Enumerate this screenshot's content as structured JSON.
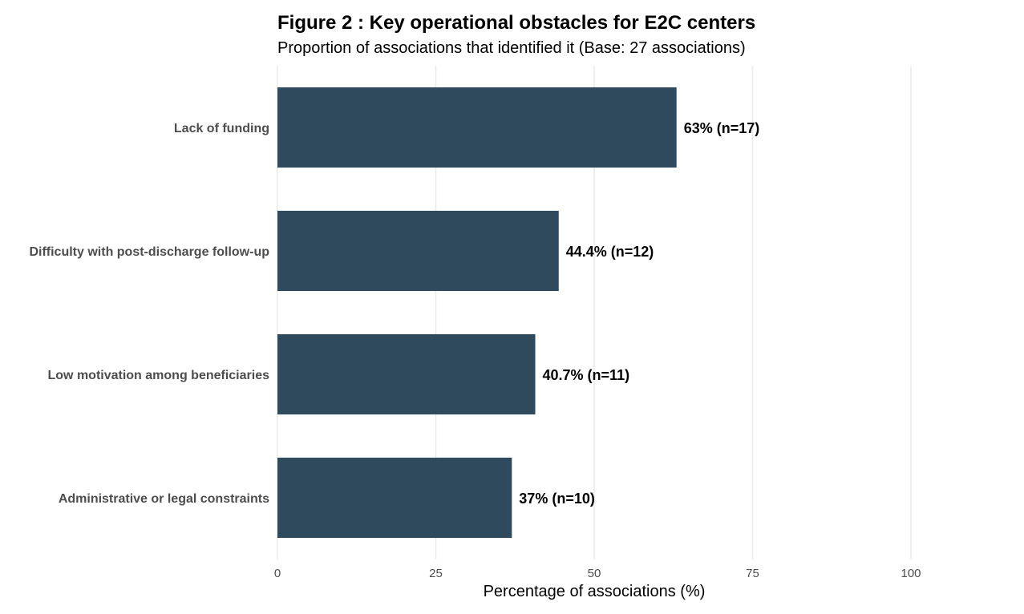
{
  "chart_data": {
    "type": "bar",
    "orientation": "horizontal",
    "title": "Figure 2 : Key operational obstacles for E2C centers",
    "subtitle": "Proportion of associations that identified it (Base: 27 associations)",
    "xlabel": "Percentage of associations (%)",
    "ylabel": "",
    "xlim": [
      0,
      100
    ],
    "x_ticks": [
      0,
      25,
      50,
      75,
      100
    ],
    "categories": [
      "Lack of funding",
      "Difficulty with post-discharge follow-up",
      "Low motivation among beneficiaries",
      "Administrative or legal constraints"
    ],
    "values": [
      63,
      44.4,
      40.7,
      37
    ],
    "data_labels": [
      "63% (n=17)",
      "44.4% (n=12)",
      "40.7% (n=11)",
      "37% (n=10)"
    ],
    "bar_color": "#2f4a5c",
    "grid": "vertical",
    "legend": "none"
  }
}
